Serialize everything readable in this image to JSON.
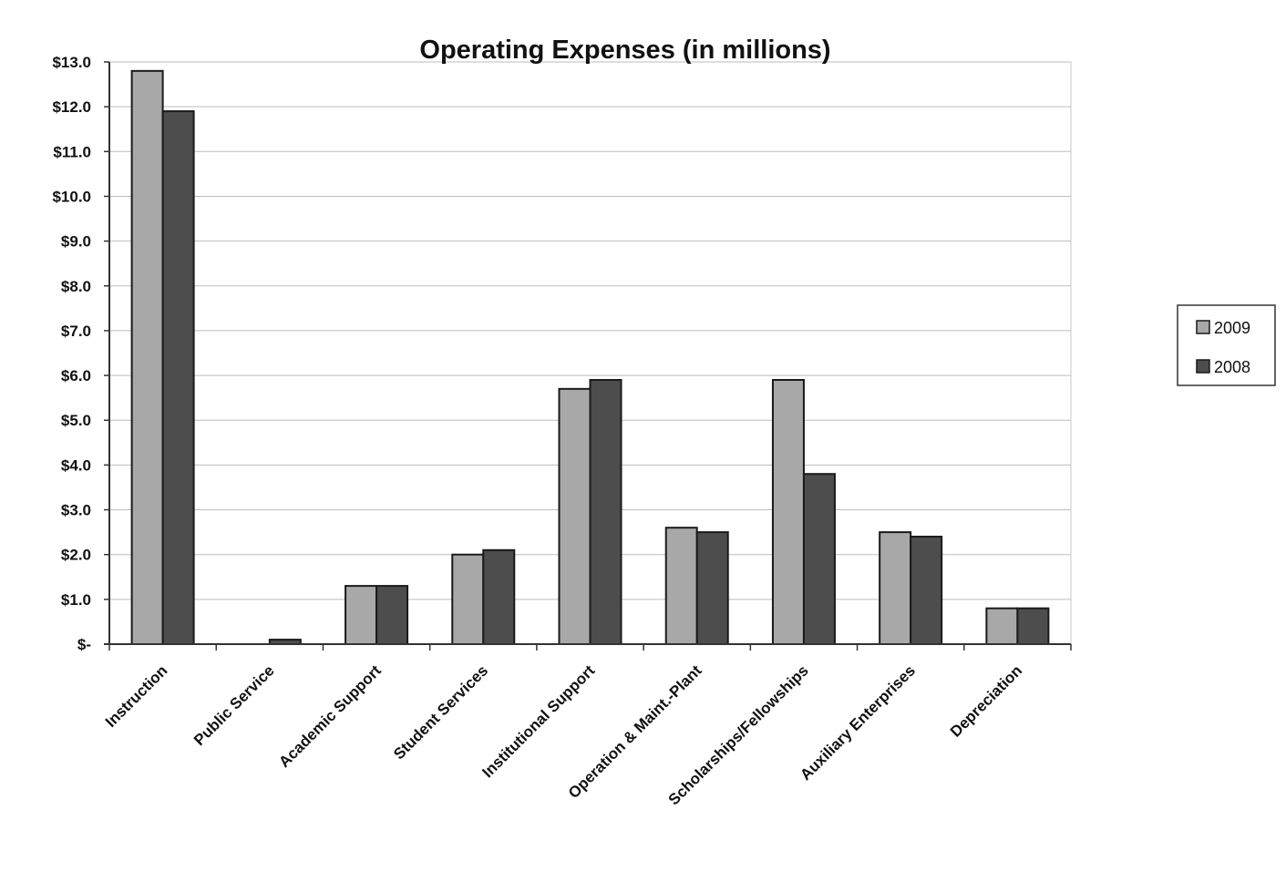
{
  "chart_data": {
    "type": "bar",
    "title": "Operating Expenses (in millions)",
    "xlabel": "",
    "ylabel": "",
    "categories": [
      "Instruction",
      "Public Service",
      "Academic Support",
      "Student Services",
      "Institutional Support",
      "Operation & Maint.-Plant",
      "Scholarships/Fellowships",
      "Auxiliary Enterprises",
      "Depreciation"
    ],
    "series": [
      {
        "name": "2009",
        "color": "#a8a8a8",
        "values": [
          12.8,
          0.0,
          1.3,
          2.0,
          5.7,
          2.6,
          5.9,
          2.5,
          0.8
        ]
      },
      {
        "name": "2008",
        "color": "#4d4d4d",
        "values": [
          11.9,
          0.1,
          1.3,
          2.1,
          5.9,
          2.5,
          3.8,
          2.4,
          0.8
        ]
      }
    ],
    "ylim": [
      0,
      13
    ],
    "yticks": [
      "$-",
      "$1.0",
      "$2.0",
      "$3.0",
      "$4.0",
      "$5.0",
      "$6.0",
      "$7.0",
      "$8.0",
      "$9.0",
      "$10.0",
      "$11.0",
      "$12.0",
      "$13.0"
    ],
    "grid": true,
    "legend_position": "right"
  }
}
